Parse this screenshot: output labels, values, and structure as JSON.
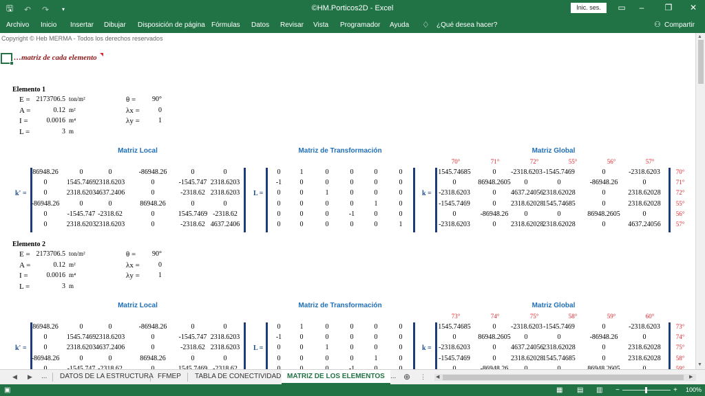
{
  "window": {
    "title": "©HM.Porticos2D  -  Excel",
    "sign_in": "Inic. ses.",
    "icons": [
      "save-icon",
      "undo-icon",
      "redo-icon",
      "customize-icon"
    ]
  },
  "ribbon": {
    "tabs": [
      "Archivo",
      "Inicio",
      "Insertar",
      "Dibujar",
      "Disposición de página",
      "Fórmulas",
      "Datos",
      "Revisar",
      "Vista",
      "Programador",
      "Ayuda"
    ],
    "tell_me": "¿Qué desea hacer?",
    "share": "Compartir"
  },
  "sheet": {
    "copyright": "Copyright © Heb MERMA - Todos los derechos reservados",
    "heading": "…matriz de cada elemento",
    "matrix_titles": {
      "local": "Matriz Local",
      "transform": "Matriz de Transformación",
      "global": "Matriz Global"
    },
    "labels": {
      "E": "E =",
      "A": "A =",
      "I": "I =",
      "L": "L =",
      "theta": "θ =",
      "lx": "λx =",
      "ly": "λy =",
      "k_local": "k' =",
      "L_mat": "L =",
      "k_global": "k ="
    },
    "elements": [
      {
        "title": "Elemento 1",
        "E": "2173706.5",
        "E_unit": "ton/m²",
        "A": "0.12",
        "A_unit": "m²",
        "I": "0.0016",
        "I_unit": "m⁴",
        "L": "3",
        "L_unit": "m",
        "theta": "90°",
        "lx": "0",
        "ly": "1",
        "dofs": [
          "70°",
          "71°",
          "72°",
          "55°",
          "56°",
          "57°"
        ],
        "local": [
          [
            "86948.26",
            "0",
            "0",
            "-86948.26",
            "0",
            "0"
          ],
          [
            "0",
            "1545.7469",
            "2318.6203",
            "0",
            "-1545.747",
            "2318.6203"
          ],
          [
            "0",
            "2318.6203",
            "4637.2406",
            "0",
            "-2318.62",
            "2318.6203"
          ],
          [
            "-86948.26",
            "0",
            "0",
            "86948.26",
            "0",
            "0"
          ],
          [
            "0",
            "-1545.747",
            "-2318.62",
            "0",
            "1545.7469",
            "-2318.62"
          ],
          [
            "0",
            "2318.6203",
            "2318.6203",
            "0",
            "-2318.62",
            "4637.2406"
          ]
        ],
        "transform": [
          [
            "0",
            "1",
            "0",
            "0",
            "0",
            "0"
          ],
          [
            "-1",
            "0",
            "0",
            "0",
            "0",
            "0"
          ],
          [
            "0",
            "0",
            "1",
            "0",
            "0",
            "0"
          ],
          [
            "0",
            "0",
            "0",
            "0",
            "1",
            "0"
          ],
          [
            "0",
            "0",
            "0",
            "-1",
            "0",
            "0"
          ],
          [
            "0",
            "0",
            "0",
            "0",
            "0",
            "1"
          ]
        ],
        "global": [
          [
            "1545.74685",
            "0",
            "-2318.6203",
            "-1545.7469",
            "0",
            "-2318.6203"
          ],
          [
            "0",
            "86948.2605",
            "0",
            "0",
            "-86948.26",
            "0"
          ],
          [
            "-2318.6203",
            "0",
            "4637.24056",
            "2318.62028",
            "0",
            "2318.62028"
          ],
          [
            "-1545.7469",
            "0",
            "2318.62028",
            "1545.74685",
            "0",
            "2318.62028"
          ],
          [
            "0",
            "-86948.26",
            "0",
            "0",
            "86948.2605",
            "0"
          ],
          [
            "-2318.6203",
            "0",
            "2318.62028",
            "2318.62028",
            "0",
            "4637.24056"
          ]
        ]
      },
      {
        "title": "Elemento 2",
        "E": "2173706.5",
        "E_unit": "ton/m²",
        "A": "0.12",
        "A_unit": "m²",
        "I": "0.0016",
        "I_unit": "m⁴",
        "L": "3",
        "L_unit": "m",
        "theta": "90°",
        "lx": "0",
        "ly": "1",
        "dofs": [
          "73°",
          "74°",
          "75°",
          "58°",
          "59°",
          "60°"
        ],
        "local": [
          [
            "86948.26",
            "0",
            "0",
            "-86948.26",
            "0",
            "0"
          ],
          [
            "0",
            "1545.7469",
            "2318.6203",
            "0",
            "-1545.747",
            "2318.6203"
          ],
          [
            "0",
            "2318.6203",
            "4637.2406",
            "0",
            "-2318.62",
            "2318.6203"
          ],
          [
            "-86948.26",
            "0",
            "0",
            "86948.26",
            "0",
            "0"
          ],
          [
            "0",
            "-1545.747",
            "-2318.62",
            "0",
            "1545.7469",
            "-2318.62"
          ]
        ],
        "transform": [
          [
            "0",
            "1",
            "0",
            "0",
            "0",
            "0"
          ],
          [
            "-1",
            "0",
            "0",
            "0",
            "0",
            "0"
          ],
          [
            "0",
            "0",
            "1",
            "0",
            "0",
            "0"
          ],
          [
            "0",
            "0",
            "0",
            "0",
            "1",
            "0"
          ],
          [
            "0",
            "0",
            "0",
            "-1",
            "0",
            "0"
          ]
        ],
        "global": [
          [
            "1545.74685",
            "0",
            "-2318.6203",
            "-1545.7469",
            "0",
            "-2318.6203"
          ],
          [
            "0",
            "86948.2605",
            "0",
            "0",
            "-86948.26",
            "0"
          ],
          [
            "-2318.6203",
            "0",
            "4637.24056",
            "2318.62028",
            "0",
            "2318.62028"
          ],
          [
            "-1545.7469",
            "0",
            "2318.62028",
            "1545.74685",
            "0",
            "2318.62028"
          ],
          [
            "0",
            "-86948.26",
            "0",
            "0",
            "86948.2605",
            "0"
          ]
        ]
      }
    ]
  },
  "sheet_tabs": {
    "more_left": "...",
    "tabs": [
      "DATOS DE LA ESTRUCTURA",
      "FFMEP",
      "TABLA DE CONECTIVIDAD",
      "MATRIZ DE LOS ELEMENTOS"
    ],
    "active": "MATRIZ DE LOS ELEMENTOS",
    "more_right": "..."
  },
  "status": {
    "zoom": "100%",
    "zoom_minus": "−",
    "zoom_plus": "+"
  }
}
